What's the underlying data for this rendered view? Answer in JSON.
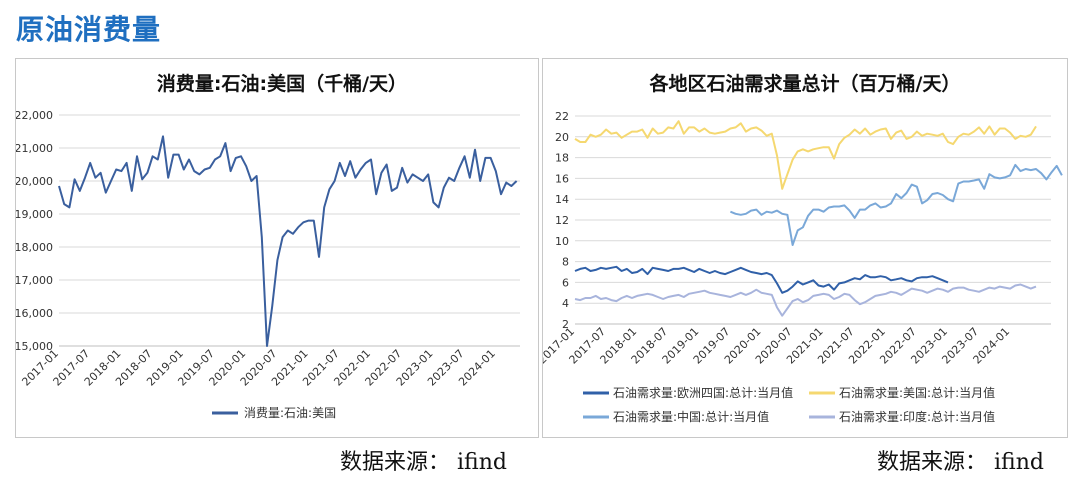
{
  "page_title": "原油消费量",
  "source_left": "数据来源：  ifind",
  "source_right": "数据来源：  ifind",
  "colors": {
    "title": "#1f6fc0",
    "europe": "#3060a8",
    "usa": "#f5d870",
    "china": "#7aa8d8",
    "india": "#a8b4dc",
    "us_consumption": "#3a5f9e"
  },
  "chart_data": [
    {
      "type": "line",
      "title": "消费量:石油:美国（千桶/天）",
      "ylim": [
        15000,
        22000
      ],
      "y_ticks": [
        "22,000",
        "21,000",
        "20,000",
        "19,000",
        "18,000",
        "17,000",
        "16,000",
        "15,000"
      ],
      "x_ticks": [
        "2017-01",
        "2017-07",
        "2018-01",
        "2018-07",
        "2019-01",
        "2019-07",
        "2020-01",
        "2020-07",
        "2021-01",
        "2021-07",
        "2022-01",
        "2022-07",
        "2023-01",
        "2023-07",
        "2024-01"
      ],
      "legend_position": "bottom",
      "grid": true,
      "x_start": "2017-01",
      "series": [
        {
          "name": "消费量:石油:美国",
          "values": [
            19850,
            19300,
            19200,
            20050,
            19700,
            20100,
            20550,
            20100,
            20250,
            19650,
            20000,
            20350,
            20300,
            20550,
            19700,
            20750,
            20050,
            20250,
            20750,
            20650,
            21350,
            20100,
            20800,
            20800,
            20350,
            20650,
            20300,
            20200,
            20350,
            20400,
            20650,
            20750,
            21150,
            20300,
            20700,
            20750,
            20450,
            20000,
            20150,
            18300,
            15000,
            16200,
            17600,
            18300,
            18500,
            18400,
            18600,
            18750,
            18800,
            18800,
            17700,
            19200,
            19750,
            20000,
            20550,
            20150,
            20600,
            20100,
            20350,
            20550,
            20650,
            19600,
            20250,
            20500,
            19700,
            19800,
            20400,
            19950,
            20200,
            20100,
            20000,
            20200,
            19350,
            19200,
            19800,
            20100,
            20000,
            20400,
            20750,
            20100,
            20950,
            20000,
            20700,
            20700,
            20300,
            19600,
            19950,
            19850,
            20000
          ]
        }
      ]
    },
    {
      "type": "line",
      "title": "各地区石油需求量总计（百万桶/天）",
      "ylim": [
        2,
        22
      ],
      "y_ticks": [
        "22",
        "20",
        "18",
        "16",
        "14",
        "12",
        "10",
        "8",
        "6",
        "4",
        "2"
      ],
      "x_ticks": [
        "2017-01",
        "2017-07",
        "2018-01",
        "2018-07",
        "2019-01",
        "2019-07",
        "2020-01",
        "2020-07",
        "2021-01",
        "2021-07",
        "2022-01",
        "2022-07",
        "2023-01",
        "2023-07",
        "2024-01"
      ],
      "legend_position": "bottom",
      "grid": true,
      "x_start": "2017-01",
      "series": [
        {
          "name": "石油需求量:欧洲四国:总计:当月值",
          "color_key": "europe",
          "start_index": 0,
          "values": [
            7.1,
            7.3,
            7.4,
            7.1,
            7.2,
            7.4,
            7.3,
            7.4,
            7.5,
            7.1,
            7.3,
            6.9,
            7.0,
            7.3,
            6.8,
            7.4,
            7.3,
            7.2,
            7.1,
            7.3,
            7.3,
            7.4,
            7.2,
            7.0,
            7.3,
            7.1,
            6.9,
            7.1,
            6.9,
            6.8,
            7.0,
            7.2,
            7.4,
            7.2,
            7.0,
            6.9,
            6.8,
            6.9,
            6.7,
            5.9,
            5.0,
            5.2,
            5.6,
            6.1,
            5.8,
            6.0,
            6.2,
            5.7,
            5.6,
            5.8,
            5.3,
            5.9,
            6.0,
            6.2,
            6.4,
            6.3,
            6.7,
            6.5,
            6.5,
            6.6,
            6.5,
            6.2,
            6.3,
            6.4,
            6.2,
            6.1,
            6.4,
            6.5,
            6.5,
            6.6,
            6.4,
            6.2,
            6.0
          ]
        },
        {
          "name": "石油需求量:美国:总计:当月值",
          "color_key": "usa",
          "start_index": 0,
          "values": [
            19.8,
            19.5,
            19.5,
            20.2,
            20.0,
            20.2,
            20.7,
            20.3,
            20.4,
            19.9,
            20.2,
            20.5,
            20.5,
            20.7,
            19.9,
            20.8,
            20.3,
            20.4,
            20.9,
            20.8,
            21.5,
            20.3,
            20.9,
            20.9,
            20.5,
            20.8,
            20.4,
            20.3,
            20.4,
            20.5,
            20.8,
            20.9,
            21.3,
            20.5,
            20.8,
            20.9,
            20.6,
            20.1,
            20.3,
            18.2,
            15.0,
            16.4,
            17.8,
            18.6,
            18.8,
            18.6,
            18.8,
            18.9,
            19.0,
            19.0,
            17.9,
            19.3,
            19.9,
            20.2,
            20.7,
            20.3,
            20.8,
            20.2,
            20.5,
            20.7,
            20.8,
            19.8,
            20.4,
            20.6,
            19.8,
            20.0,
            20.5,
            20.1,
            20.3,
            20.2,
            20.1,
            20.3,
            19.5,
            19.3,
            20.0,
            20.3,
            20.2,
            20.5,
            20.9,
            20.3,
            21.0,
            20.2,
            20.8,
            20.8,
            20.4,
            19.8,
            20.1,
            20.0,
            20.2,
            21.0
          ]
        },
        {
          "name": "石油需求量:中国:总计:当月值",
          "color_key": "china",
          "start_index": 30,
          "values": [
            12.8,
            12.6,
            12.5,
            12.6,
            12.9,
            13.0,
            12.5,
            12.8,
            12.7,
            12.9,
            12.6,
            12.5,
            9.6,
            11.0,
            11.3,
            12.4,
            13.0,
            13.0,
            12.8,
            13.2,
            13.3,
            13.3,
            13.4,
            12.9,
            12.2,
            13.0,
            13.0,
            13.4,
            13.6,
            13.2,
            13.3,
            13.6,
            14.5,
            14.1,
            14.6,
            15.4,
            15.2,
            13.6,
            13.9,
            14.5,
            14.6,
            14.4,
            14.0,
            13.8,
            15.5,
            15.7,
            15.7,
            15.8,
            15.9,
            15.0,
            16.4,
            16.1,
            16.0,
            16.1,
            16.3,
            17.3,
            16.7,
            16.9,
            16.8,
            16.9,
            16.5,
            15.9,
            16.6,
            17.2,
            16.3
          ]
        },
        {
          "name": "石油需求量:印度:总计:当月值",
          "color_key": "india",
          "start_index": 0,
          "values": [
            4.4,
            4.3,
            4.5,
            4.5,
            4.7,
            4.4,
            4.5,
            4.3,
            4.2,
            4.5,
            4.7,
            4.5,
            4.7,
            4.8,
            4.9,
            4.8,
            4.6,
            4.4,
            4.6,
            4.7,
            4.8,
            4.6,
            4.9,
            5.0,
            5.1,
            5.2,
            5.0,
            4.9,
            4.8,
            4.7,
            4.6,
            4.8,
            5.0,
            4.8,
            5.0,
            5.3,
            5.0,
            4.9,
            4.8,
            3.6,
            2.8,
            3.5,
            4.2,
            4.4,
            4.1,
            4.3,
            4.7,
            4.8,
            4.9,
            4.8,
            4.4,
            4.6,
            4.9,
            4.8,
            4.3,
            3.9,
            4.1,
            4.4,
            4.7,
            4.8,
            4.9,
            5.1,
            5.0,
            4.8,
            5.1,
            5.4,
            5.3,
            5.2,
            5.0,
            5.2,
            5.4,
            5.3,
            5.1,
            5.4,
            5.5,
            5.5,
            5.3,
            5.2,
            5.1,
            5.3,
            5.5,
            5.4,
            5.6,
            5.5,
            5.4,
            5.7,
            5.8,
            5.6,
            5.4,
            5.6
          ]
        }
      ]
    }
  ]
}
